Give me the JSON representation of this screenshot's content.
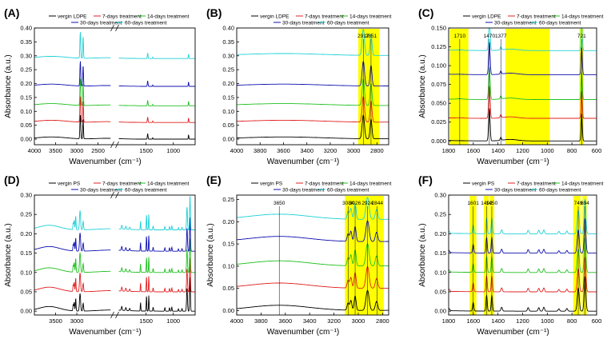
{
  "axis_label_units": "(cm⁻¹)",
  "chart_data": [
    {
      "panel": "(A)",
      "type": "line",
      "xlabel": "Wavenumber (cm-1)",
      "ylabel": "Absorbance (a.u.)",
      "xlim": [
        4000,
        600
      ],
      "ylim": [
        -0.02,
        0.4
      ],
      "x_axis_break": true,
      "xticks": [
        4000,
        3500,
        3000,
        2500,
        1500,
        1000
      ],
      "yticks": [
        0.0,
        0.05,
        0.1,
        0.15,
        0.2,
        0.25,
        0.3,
        0.35,
        0.4
      ],
      "legend": [
        "vergin LDPE",
        "7-days treatment",
        "14-days treatment",
        "30-days treatment",
        "60-days treatment"
      ],
      "series": [
        {
          "name": "vergin LDPE",
          "color": "#000000",
          "offset": 0.0
        },
        {
          "name": "7-days treatment",
          "color": "#e02020",
          "offset": 0.06
        },
        {
          "name": "14-days treatment",
          "color": "#20c020",
          "offset": 0.12
        },
        {
          "name": "30-days treatment",
          "color": "#1010b0",
          "offset": 0.19
        },
        {
          "name": "60-days treatment",
          "color": "#20d0d8",
          "offset": 0.29
        }
      ],
      "peaks": [
        2917,
        2851,
        1470,
        721
      ],
      "highlights": [],
      "annotations": []
    },
    {
      "panel": "(B)",
      "type": "line",
      "xlabel": "Wavenumber (cm-1)",
      "ylabel": "",
      "xlim": [
        4000,
        2700
      ],
      "ylim": [
        -0.02,
        0.4
      ],
      "xticks": [
        4000,
        3800,
        3600,
        3400,
        3200,
        3000,
        2800
      ],
      "yticks": [
        0.0,
        0.05,
        0.1,
        0.15,
        0.2,
        0.25,
        0.3,
        0.35,
        0.4
      ],
      "legend": [
        "vergin LDPE",
        "7-days treatment",
        "14-days treatment",
        "30-days treatment",
        "60-days treatment"
      ],
      "series": [
        {
          "name": "vergin LDPE",
          "color": "#000000",
          "offset": 0.0
        },
        {
          "name": "7-days treatment",
          "color": "#e02020",
          "offset": 0.06
        },
        {
          "name": "14-days treatment",
          "color": "#20c020",
          "offset": 0.12
        },
        {
          "name": "30-days treatment",
          "color": "#1010b0",
          "offset": 0.19
        },
        {
          "name": "60-days treatment",
          "color": "#20d0d8",
          "offset": 0.3
        }
      ],
      "peaks": [
        2917,
        2851
      ],
      "highlights": [
        [
          2960,
          2780
        ]
      ],
      "annotations": [
        {
          "text": "2917",
          "x": 2917
        },
        {
          "text": "2851",
          "x": 2851
        }
      ]
    },
    {
      "panel": "(C)",
      "type": "line",
      "xlabel": "Wavenumber (cm-1)",
      "ylabel": "Absorbance (a.u.)",
      "xlim": [
        1800,
        600
      ],
      "ylim": [
        -0.005,
        0.15
      ],
      "xticks": [
        1800,
        1600,
        1400,
        1200,
        1000,
        800,
        600
      ],
      "yticks": [
        0.0,
        0.025,
        0.05,
        0.075,
        0.1,
        0.125,
        0.15
      ],
      "legend": [
        "vergin LDPE",
        "7-days treatment",
        "14-days treatment",
        "30-days treatment",
        "60-days treatment"
      ],
      "series": [
        {
          "name": "vergin LDPE",
          "color": "#000000",
          "offset": 0.0
        },
        {
          "name": "7-days treatment",
          "color": "#e02020",
          "offset": 0.03
        },
        {
          "name": "14-days treatment",
          "color": "#20c020",
          "offset": 0.055
        },
        {
          "name": "30-days treatment",
          "color": "#1010b0",
          "offset": 0.088
        },
        {
          "name": "60-days treatment",
          "color": "#20d0d8",
          "offset": 0.12
        }
      ],
      "peaks": [
        1470,
        721
      ],
      "highlights": [
        [
          1790,
          1640
        ],
        [
          1340,
          980
        ],
        [
          740,
          705
        ]
      ],
      "annotations": [
        {
          "text": "1710",
          "x": 1710
        },
        {
          "text": "1470",
          "x": 1470
        },
        {
          "text": "1377",
          "x": 1377
        },
        {
          "text": "721",
          "x": 721
        }
      ]
    },
    {
      "panel": "(D)",
      "type": "line",
      "xlabel": "Wavenumber (cm-1)",
      "ylabel": "Absorbance (a.u.)",
      "xlim": [
        4000,
        600
      ],
      "ylim": [
        -0.01,
        0.3
      ],
      "x_axis_break": true,
      "xticks": [
        3500,
        3000,
        1500,
        1000
      ],
      "yticks": [
        0.0,
        0.05,
        0.1,
        0.15,
        0.2,
        0.25,
        0.3
      ],
      "legend": [
        "vergin PS",
        "7-days treatment",
        "14-days treatment",
        "30-days treatment",
        "60-days treatment"
      ],
      "series": [
        {
          "name": "vergin PS",
          "color": "#000000",
          "offset": 0.0
        },
        {
          "name": "7-days treatment",
          "color": "#e02020",
          "offset": 0.05
        },
        {
          "name": "14-days treatment",
          "color": "#20c020",
          "offset": 0.1
        },
        {
          "name": "30-days treatment",
          "color": "#1010b0",
          "offset": 0.155
        },
        {
          "name": "60-days treatment",
          "color": "#20d0d8",
          "offset": 0.21
        }
      ],
      "peaks": [
        3026,
        2924,
        1601,
        1492,
        1450,
        749,
        694
      ],
      "highlights": [],
      "annotations": []
    },
    {
      "panel": "(E)",
      "type": "line",
      "xlabel": "Wavenumber (cm-1)",
      "ylabel": "Absorbance (a.u.)",
      "xlim": [
        4000,
        2750
      ],
      "ylim": [
        -0.01,
        0.26
      ],
      "xticks": [
        4000,
        3800,
        3600,
        3400,
        3200,
        3000,
        2800
      ],
      "yticks": [
        0.0,
        0.05,
        0.1,
        0.15,
        0.2,
        0.25
      ],
      "legend": [
        "vergin PS",
        "7-days treatment",
        "14-days treatment",
        "30-days treatment",
        "60-days treatment"
      ],
      "series": [
        {
          "name": "vergin PS",
          "color": "#000000",
          "offset": 0.0
        },
        {
          "name": "7-days treatment",
          "color": "#e02020",
          "offset": 0.05
        },
        {
          "name": "14-days treatment",
          "color": "#20c020",
          "offset": 0.1
        },
        {
          "name": "30-days treatment",
          "color": "#1010b0",
          "offset": 0.155
        },
        {
          "name": "60-days treatment",
          "color": "#20d0d8",
          "offset": 0.205
        }
      ],
      "peaks": [
        3084,
        3026,
        2924,
        2844
      ],
      "highlights": [
        [
          3110,
          2790
        ]
      ],
      "annotations": [
        {
          "text": "3650",
          "x": 3650
        },
        {
          "text": "3084",
          "x": 3084
        },
        {
          "text": "3026",
          "x": 3026
        },
        {
          "text": "2924",
          "x": 2924
        },
        {
          "text": "2844",
          "x": 2844
        }
      ]
    },
    {
      "panel": "(F)",
      "type": "line",
      "xlabel": "Wavenumber (cm-1)",
      "ylabel": "Absorbance (a.u.)",
      "xlim": [
        1800,
        600
      ],
      "ylim": [
        -0.01,
        0.3
      ],
      "xticks": [
        1800,
        1600,
        1400,
        1200,
        1000,
        800,
        600
      ],
      "yticks": [
        0.0,
        0.05,
        0.1,
        0.15,
        0.2,
        0.25,
        0.3
      ],
      "legend": [
        "vergin PS",
        "7-days treatment",
        "14-days treatment",
        "30-days treatment",
        "60-days treatment"
      ],
      "series": [
        {
          "name": "vergin PS",
          "color": "#000000",
          "offset": 0.0
        },
        {
          "name": "7-days treatment",
          "color": "#e02020",
          "offset": 0.05
        },
        {
          "name": "14-days treatment",
          "color": "#20c020",
          "offset": 0.1
        },
        {
          "name": "30-days treatment",
          "color": "#1010b0",
          "offset": 0.15
        },
        {
          "name": "60-days treatment",
          "color": "#20d0d8",
          "offset": 0.2
        }
      ],
      "peaks": [
        1601,
        1492,
        1450,
        749,
        694
      ],
      "highlights": [
        [
          1630,
          1575
        ],
        [
          1515,
          1475
        ],
        [
          1465,
          1430
        ],
        [
          790,
          730
        ],
        [
          715,
          680
        ]
      ],
      "annotations": [
        {
          "text": "1601",
          "x": 1601
        },
        {
          "text": "1492",
          "x": 1492
        },
        {
          "text": "1450",
          "x": 1450
        },
        {
          "text": "749",
          "x": 749
        },
        {
          "text": "694",
          "x": 694
        }
      ]
    }
  ]
}
